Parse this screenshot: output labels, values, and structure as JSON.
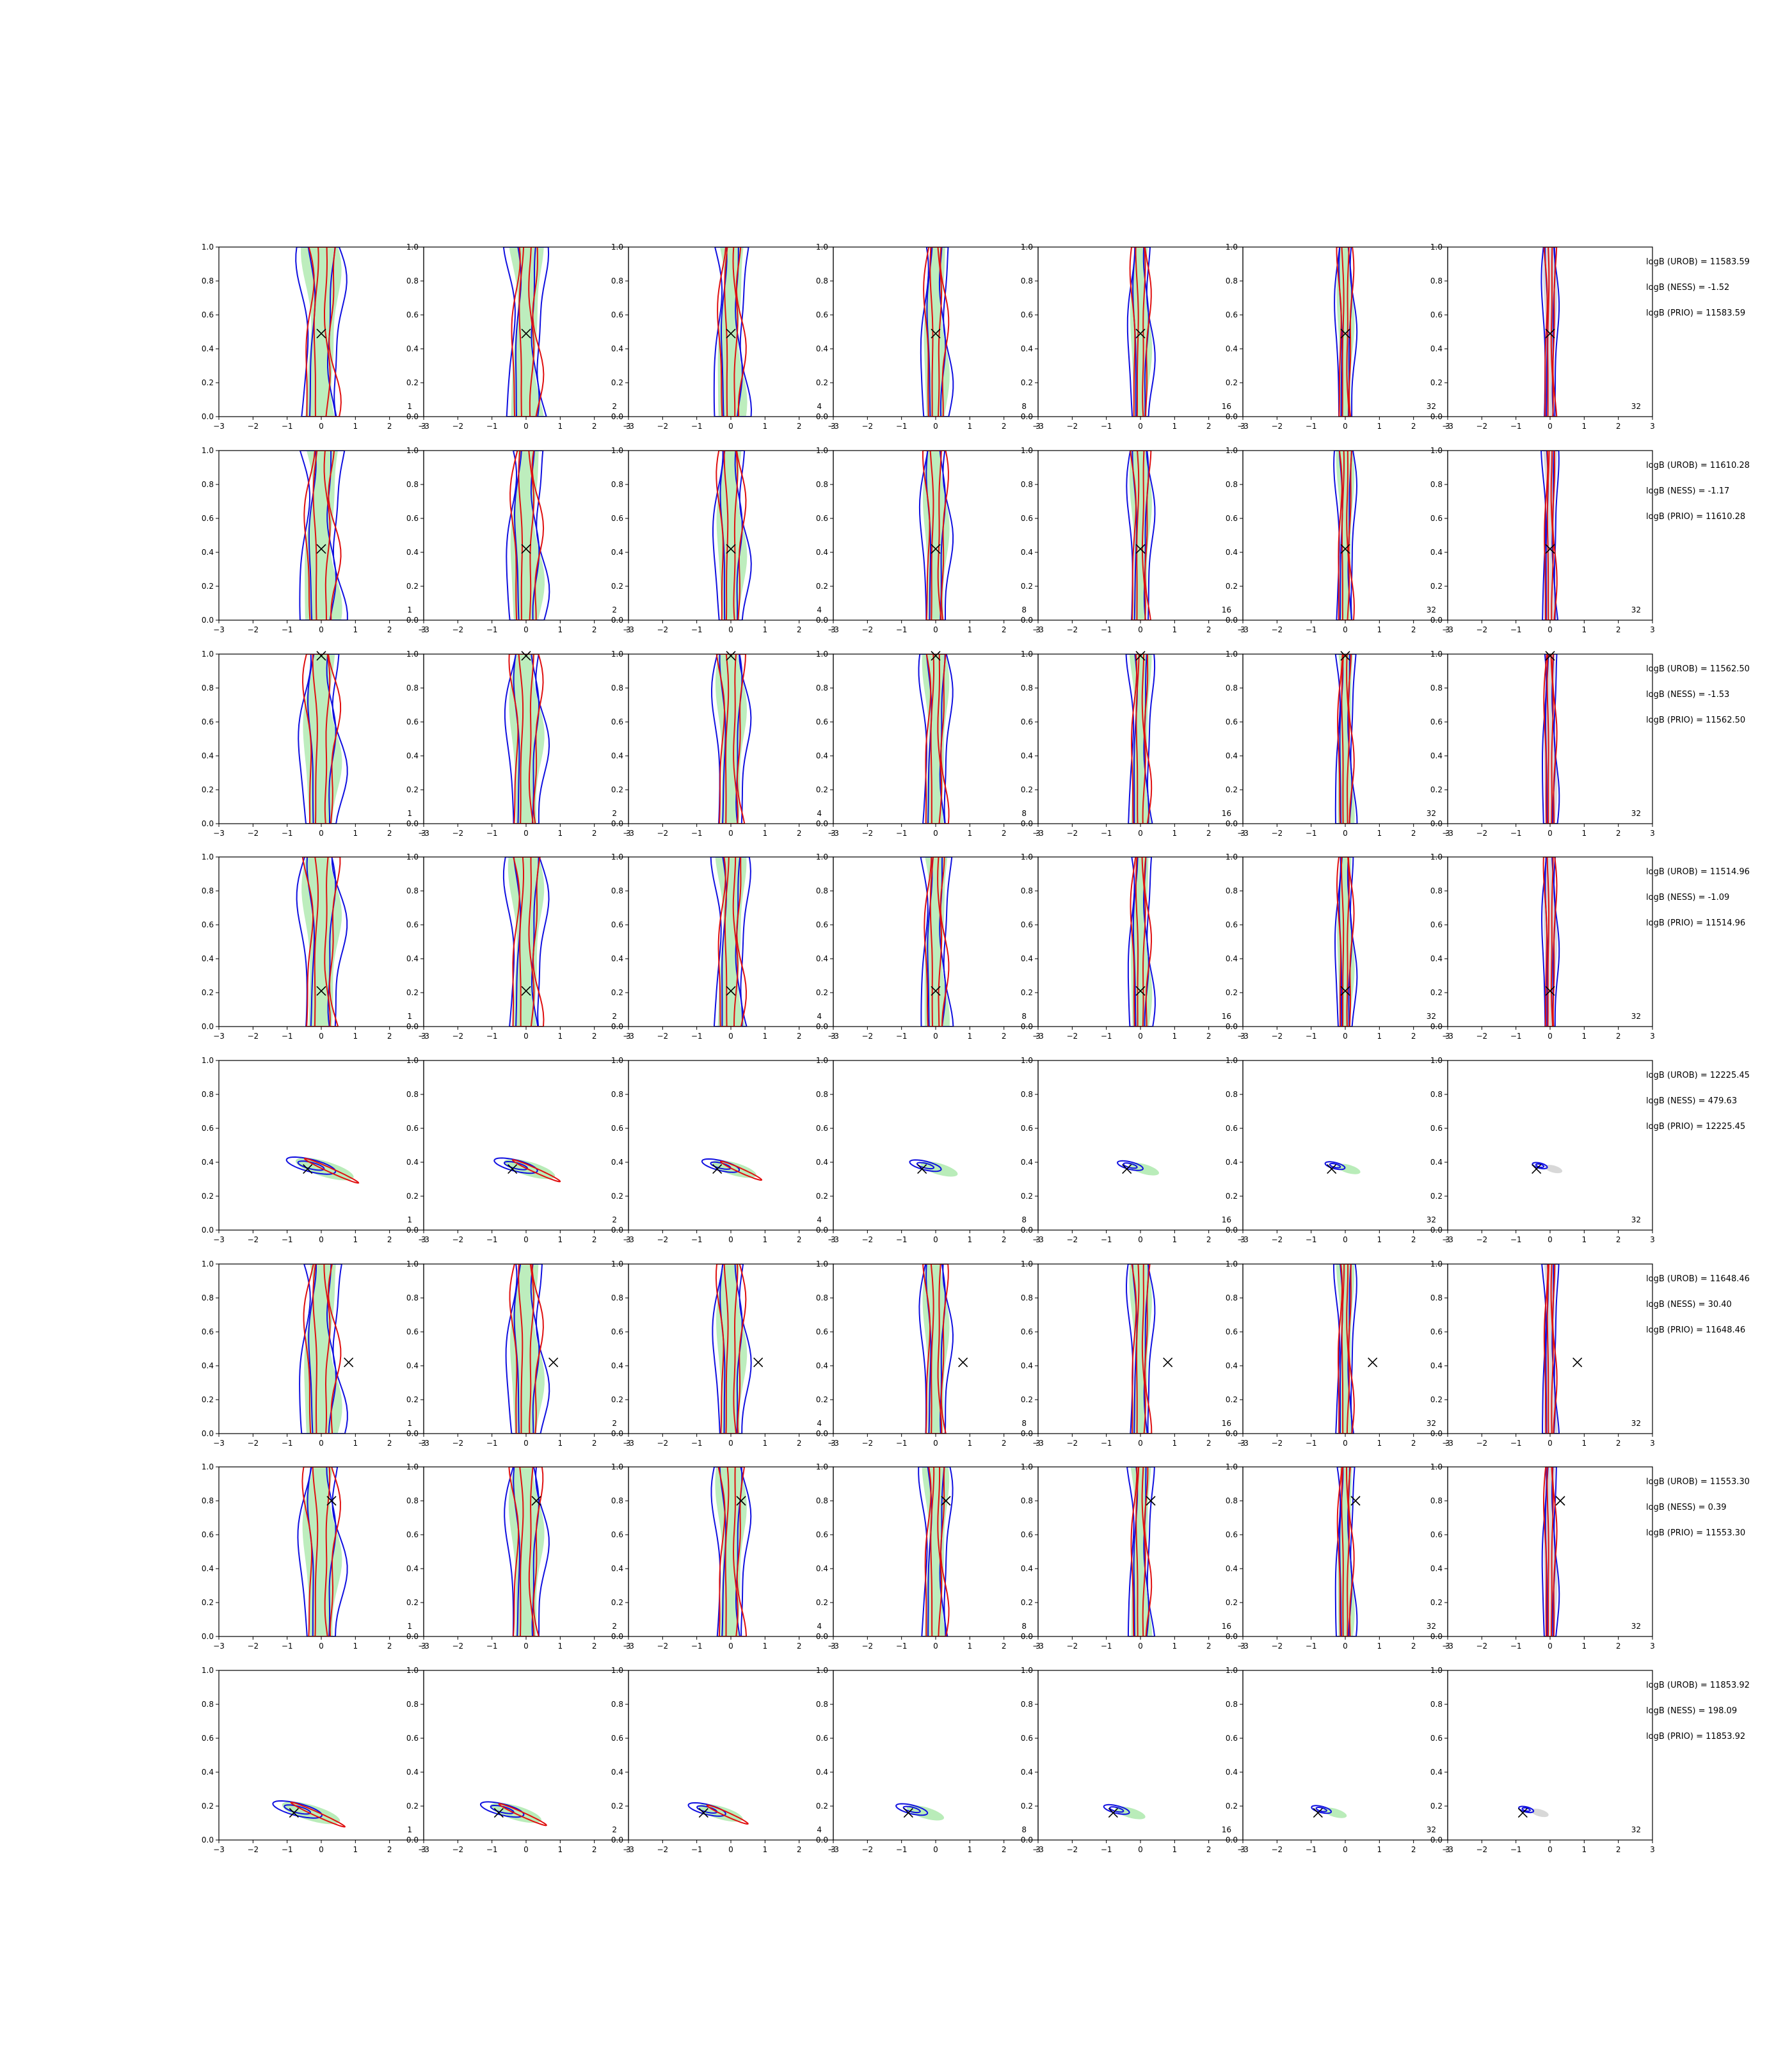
{
  "chart_data": {
    "type": "contour-grid",
    "x_ticks": [
      "−3",
      "−2",
      "−1",
      "0",
      "1",
      "2",
      "3"
    ],
    "y_ticks": [
      "0.0",
      "0.2",
      "0.4",
      "0.6",
      "0.8",
      "1.0"
    ],
    "xlim": [
      -3,
      3
    ],
    "ylim": [
      0,
      1
    ],
    "columns": [
      "1",
      "2",
      "4",
      "8",
      "16",
      "32",
      "32"
    ],
    "colors": {
      "blue": "#1010e0",
      "red": "#e01010",
      "green_fill": "#b9ecb9",
      "grey_fill": "#d8d8d8",
      "marker": "#000000"
    },
    "rows": [
      {
        "marker": [
          0,
          0.49
        ],
        "shape": "vertical",
        "x_center": 0,
        "stats": [
          "logB (UROB) = 11583.59",
          "logB (NESS) = -1.52",
          "logB (PRIO) = 11583.59"
        ]
      },
      {
        "marker": [
          0,
          0.42
        ],
        "shape": "vertical",
        "x_center": 0,
        "stats": [
          "logB (UROB) = 11610.28",
          "logB (NESS) = -1.17",
          "logB (PRIO) = 11610.28"
        ]
      },
      {
        "marker": [
          0,
          0.99
        ],
        "shape": "vertical",
        "x_center": 0,
        "stats": [
          "logB (UROB) = 11562.50",
          "logB (NESS) = -1.53",
          "logB (PRIO) = 11562.50"
        ]
      },
      {
        "marker": [
          0,
          0.21
        ],
        "shape": "vertical",
        "x_center": 0,
        "stats": [
          "logB (UROB) = 11514.96",
          "logB (NESS) = -1.09",
          "logB (PRIO) = 11514.96"
        ]
      },
      {
        "marker": [
          -0.4,
          0.36
        ],
        "shape": "tilted",
        "x_center": -0.3,
        "y_center": 0.37,
        "stats": [
          "logB (UROB) = 12225.45",
          "logB (NESS) = 479.63",
          "logB (PRIO) = 12225.45"
        ]
      },
      {
        "marker": [
          0.8,
          0.42
        ],
        "shape": "vertical",
        "x_center": 0,
        "stats": [
          "logB (UROB) = 11648.46",
          "logB (NESS) = 30.40",
          "logB (PRIO) = 11648.46"
        ]
      },
      {
        "marker": [
          0.3,
          0.8
        ],
        "shape": "vertical",
        "x_center": 0,
        "stats": [
          "logB (UROB) = 11553.30",
          "logB (NESS) = 0.39",
          "logB (PRIO) = 11553.30"
        ]
      },
      {
        "marker": [
          -0.8,
          0.16
        ],
        "shape": "tilted",
        "x_center": -0.7,
        "y_center": 0.17,
        "stats": [
          "logB (UROB) = 11853.92",
          "logB (NESS) = 198.09",
          "logB (PRIO) = 11853.92"
        ]
      }
    ]
  }
}
